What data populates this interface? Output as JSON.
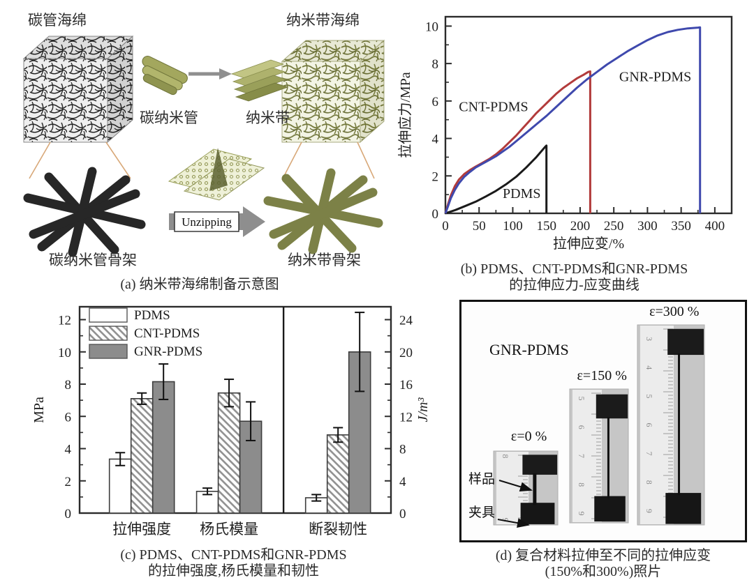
{
  "panel_a": {
    "caption": "(a) 纳米带海绵制备示意图",
    "label_cnt_sponge": "碳管海绵",
    "label_gnr_sponge": "纳米带海绵",
    "label_cnt": "碳纳米管",
    "label_gnr": "纳米带",
    "label_cnt_skeleton": "碳纳米管骨架",
    "label_gnr_skeleton": "纳米带骨架",
    "label_unzipping": "Unzipping"
  },
  "panel_b": {
    "caption_line1": "(b) PDMS、CNT-PDMS和GNR-PDMS",
    "caption_line2": "的拉伸应力-应变曲线"
  },
  "panel_c": {
    "caption_line1": "(c) PDMS、CNT-PDMS和GNR-PDMS",
    "caption_line2": "的拉伸强度,杨氏模量和韧性"
  },
  "panel_d": {
    "caption_line1": "(d) 复合材料拉伸至不同的拉伸应变",
    "caption_line2": "(150%和300%)照片",
    "material_label": "GNR-PDMS",
    "label_sample": "样品",
    "label_clamp": "夹具",
    "photos": [
      {
        "strain_label": "ε=0 %",
        "ruler_numbers": [
          "8",
          "9"
        ]
      },
      {
        "strain_label": "ε=150 %",
        "ruler_numbers": [
          "5",
          "6",
          "7",
          "8",
          "9"
        ]
      },
      {
        "strain_label": "ε=300 %",
        "ruler_numbers": [
          "3",
          "4",
          "5",
          "6",
          "7",
          "8",
          "9"
        ]
      }
    ]
  },
  "chart_data": [
    {
      "panel": "b",
      "type": "line",
      "title": "",
      "xlabel": "拉伸应变/%",
      "ylabel": "拉伸应力/MPa",
      "xlim": [
        0,
        425
      ],
      "ylim": [
        0,
        10.5
      ],
      "xticks": [
        0,
        50,
        100,
        150,
        200,
        250,
        300,
        350,
        400
      ],
      "yticks": [
        0,
        2,
        4,
        6,
        8,
        10
      ],
      "grid": false,
      "legend_position": "inline-labels",
      "series": [
        {
          "name": "PDMS",
          "color": "#1a1a1a",
          "break_strain_pct": 150,
          "break_stress_MPa": 3.6,
          "label_xy": [
            85,
            0.82
          ],
          "points": [
            [
              0,
              0
            ],
            [
              15,
              0.18
            ],
            [
              30,
              0.4
            ],
            [
              45,
              0.62
            ],
            [
              60,
              0.9
            ],
            [
              75,
              1.2
            ],
            [
              90,
              1.55
            ],
            [
              105,
              1.95
            ],
            [
              120,
              2.45
            ],
            [
              135,
              3.0
            ],
            [
              148,
              3.55
            ],
            [
              150,
              3.62
            ],
            [
              150,
              0
            ]
          ]
        },
        {
          "name": "CNT-PDMS",
          "color": "#b23b3b",
          "break_strain_pct": 215,
          "break_stress_MPa": 7.6,
          "label_xy": [
            20,
            5.45
          ],
          "points": [
            [
              0,
              0
            ],
            [
              4,
              0.5
            ],
            [
              8,
              0.95
            ],
            [
              14,
              1.45
            ],
            [
              20,
              1.8
            ],
            [
              28,
              2.1
            ],
            [
              36,
              2.3
            ],
            [
              45,
              2.5
            ],
            [
              55,
              2.7
            ],
            [
              65,
              2.9
            ],
            [
              75,
              3.15
            ],
            [
              85,
              3.45
            ],
            [
              95,
              3.8
            ],
            [
              105,
              4.15
            ],
            [
              115,
              4.55
            ],
            [
              125,
              4.95
            ],
            [
              135,
              5.35
            ],
            [
              145,
              5.7
            ],
            [
              155,
              6.05
            ],
            [
              165,
              6.4
            ],
            [
              175,
              6.7
            ],
            [
              185,
              6.95
            ],
            [
              195,
              7.2
            ],
            [
              205,
              7.4
            ],
            [
              212,
              7.55
            ],
            [
              215,
              7.58
            ],
            [
              215,
              0
            ]
          ]
        },
        {
          "name": "GNR-PDMS",
          "color": "#3f49ad",
          "break_strain_pct": 378,
          "break_stress_MPa": 9.9,
          "label_xy": [
            258,
            7.05
          ],
          "points": [
            [
              0,
              0
            ],
            [
              4,
              0.4
            ],
            [
              8,
              0.8
            ],
            [
              14,
              1.25
            ],
            [
              20,
              1.6
            ],
            [
              28,
              1.95
            ],
            [
              36,
              2.2
            ],
            [
              45,
              2.45
            ],
            [
              55,
              2.65
            ],
            [
              65,
              2.85
            ],
            [
              75,
              3.05
            ],
            [
              85,
              3.3
            ],
            [
              95,
              3.55
            ],
            [
              105,
              3.85
            ],
            [
              120,
              4.3
            ],
            [
              135,
              4.75
            ],
            [
              150,
              5.2
            ],
            [
              165,
              5.7
            ],
            [
              180,
              6.2
            ],
            [
              195,
              6.7
            ],
            [
              210,
              7.15
            ],
            [
              225,
              7.55
            ],
            [
              240,
              7.95
            ],
            [
              255,
              8.3
            ],
            [
              270,
              8.65
            ],
            [
              285,
              8.95
            ],
            [
              300,
              9.25
            ],
            [
              315,
              9.5
            ],
            [
              330,
              9.68
            ],
            [
              345,
              9.8
            ],
            [
              360,
              9.88
            ],
            [
              375,
              9.92
            ],
            [
              378,
              9.93
            ],
            [
              378,
              0
            ]
          ]
        }
      ]
    },
    {
      "panel": "c",
      "type": "bar",
      "ylabel_left": "MPa",
      "ylabel_right": "J/m³",
      "ylim_left": [
        0,
        12.8
      ],
      "ylim_right": [
        0,
        25.6
      ],
      "yticks_left": [
        0,
        2,
        4,
        6,
        8,
        10,
        12
      ],
      "yticks_right": [
        0,
        4,
        8,
        12,
        16,
        20,
        24
      ],
      "categories": [
        "拉伸强度",
        "杨氏模量",
        "断裂韧性"
      ],
      "right_axis_category": "断裂韧性",
      "note": "断裂韧性 values read on right axis (J/m³); 拉伸强度 and 杨氏模量 read on left axis (MPa)",
      "legend": [
        "PDMS",
        "CNT-PDMS",
        "GNR-PDMS"
      ],
      "legend_position": "top-left",
      "series": [
        {
          "name": "PDMS",
          "style": "plain",
          "values": [
            3.35,
            1.35,
            1.9
          ],
          "errors": [
            0.4,
            0.2,
            0.4
          ]
        },
        {
          "name": "CNT-PDMS",
          "style": "hatch",
          "values": [
            7.1,
            7.45,
            9.7
          ],
          "errors": [
            0.35,
            0.85,
            0.9
          ]
        },
        {
          "name": "GNR-PDMS",
          "style": "solid",
          "values": [
            8.15,
            5.7,
            20.0
          ],
          "errors": [
            1.1,
            1.2,
            4.9
          ]
        }
      ]
    }
  ]
}
